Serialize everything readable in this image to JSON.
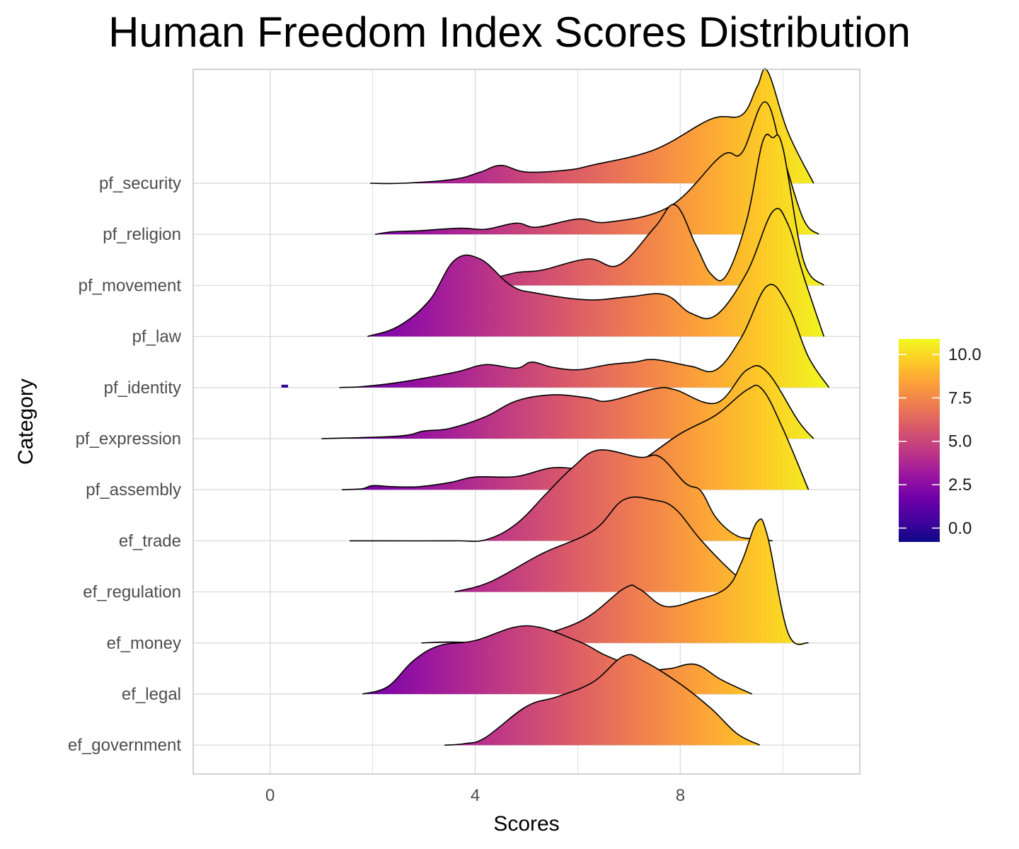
{
  "chart_data": {
    "type": "ridgeline",
    "title": "Human Freedom Index Scores Distribution",
    "xlabel": "Scores",
    "ylabel": "Category",
    "xlim": [
      -1.5,
      11.5
    ],
    "xticks": [
      0,
      4,
      8
    ],
    "grid": true,
    "categories": [
      "pf_security",
      "pf_religion",
      "pf_movement",
      "pf_law",
      "pf_identity",
      "pf_expression",
      "pf_assembly",
      "ef_trade",
      "ef_regulation",
      "ef_money",
      "ef_legal",
      "ef_government"
    ],
    "series": [
      {
        "category": "pf_security",
        "x": [
          1.95,
          2.6,
          3.6,
          4.1,
          4.5,
          5.0,
          5.8,
          6.3,
          7.5,
          8.6,
          9.2,
          9.5,
          9.7,
          10.1,
          10.6
        ],
        "density": [
          0.0,
          0.0,
          0.08,
          0.22,
          0.35,
          0.22,
          0.26,
          0.36,
          0.66,
          1.26,
          1.34,
          1.9,
          2.2,
          1.0,
          0.0
        ]
      },
      {
        "category": "pf_religion",
        "x": [
          2.05,
          2.4,
          2.9,
          3.7,
          4.2,
          4.8,
          5.2,
          6.0,
          6.6,
          7.8,
          8.8,
          9.2,
          9.65,
          10.0,
          10.4,
          10.7
        ],
        "density": [
          0.0,
          0.05,
          0.07,
          0.12,
          0.1,
          0.22,
          0.14,
          0.3,
          0.24,
          0.55,
          1.54,
          1.6,
          2.6,
          1.55,
          0.3,
          0.0
        ]
      },
      {
        "category": "pf_movement",
        "x": [
          3.4,
          3.7,
          4.2,
          4.8,
          5.3,
          6.2,
          6.8,
          7.5,
          7.9,
          8.3,
          8.6,
          8.9,
          9.3,
          9.6,
          9.8,
          10.0,
          10.4,
          10.8
        ],
        "density": [
          0.0,
          0.0,
          0.1,
          0.25,
          0.3,
          0.52,
          0.4,
          1.14,
          1.58,
          0.8,
          0.22,
          0.2,
          1.3,
          2.8,
          2.9,
          2.7,
          0.5,
          0.0
        ]
      },
      {
        "category": "pf_law",
        "x": [
          1.9,
          2.5,
          3.1,
          3.6,
          4.1,
          4.7,
          5.2,
          6.2,
          7.0,
          7.7,
          8.2,
          8.7,
          9.3,
          9.8,
          10.1,
          10.4,
          10.8
        ],
        "density": [
          0.0,
          0.2,
          0.7,
          1.5,
          1.52,
          1.0,
          0.85,
          0.72,
          0.78,
          0.82,
          0.46,
          0.42,
          1.26,
          2.45,
          2.2,
          1.2,
          0.0
        ]
      },
      {
        "category": "pf_identity",
        "x": [
          1.35,
          1.8,
          2.5,
          3.6,
          4.2,
          4.8,
          5.1,
          5.5,
          6.0,
          6.6,
          7.1,
          7.5,
          8.2,
          8.7,
          9.2,
          9.7,
          10.1,
          10.5,
          10.9
        ],
        "density": [
          0.0,
          0.02,
          0.1,
          0.3,
          0.45,
          0.38,
          0.5,
          0.4,
          0.35,
          0.45,
          0.5,
          0.55,
          0.42,
          0.35,
          1.0,
          2.0,
          1.6,
          0.6,
          0.0
        ]
      },
      {
        "category": "pf_expression",
        "x": [
          1.0,
          2.5,
          3.0,
          3.5,
          4.2,
          4.8,
          5.5,
          6.2,
          6.6,
          7.5,
          7.9,
          8.7,
          9.3,
          9.7,
          10.3,
          10.6
        ],
        "density": [
          0.0,
          0.05,
          0.15,
          0.2,
          0.43,
          0.74,
          0.86,
          0.8,
          0.74,
          0.98,
          0.96,
          0.7,
          1.35,
          1.3,
          0.35,
          0.0
        ]
      },
      {
        "category": "pf_assembly",
        "x": [
          1.4,
          1.8,
          2.0,
          2.4,
          2.9,
          3.5,
          4.0,
          4.8,
          5.5,
          6.2,
          7.0,
          8.0,
          8.7,
          9.3,
          9.6,
          10.0,
          10.5
        ],
        "density": [
          0.0,
          0.02,
          0.08,
          0.06,
          0.06,
          0.14,
          0.25,
          0.26,
          0.43,
          0.4,
          0.45,
          1.1,
          1.47,
          1.96,
          1.97,
          1.2,
          0.0
        ]
      },
      {
        "category": "ef_trade",
        "x": [
          1.55,
          2.2,
          3.6,
          4.2,
          4.8,
          5.4,
          5.9,
          6.4,
          7.2,
          7.6,
          8.1,
          8.4,
          8.7,
          9.1,
          9.5,
          9.8
        ],
        "density": [
          0.0,
          0.0,
          0.0,
          0.02,
          0.33,
          0.94,
          1.44,
          1.78,
          1.64,
          1.65,
          1.13,
          0.98,
          0.45,
          0.1,
          0.04,
          0.0
        ]
      },
      {
        "category": "ef_regulation",
        "x": [
          3.6,
          4.3,
          5.3,
          6.3,
          6.9,
          7.5,
          7.9,
          8.4,
          9.0,
          9.5
        ],
        "density": [
          0.0,
          0.2,
          0.75,
          1.2,
          1.81,
          1.8,
          1.63,
          1.02,
          0.4,
          0.0
        ]
      },
      {
        "category": "ef_money",
        "x": [
          2.95,
          3.5,
          4.1,
          4.6,
          6.0,
          6.9,
          7.2,
          7.7,
          8.3,
          8.9,
          9.2,
          9.5,
          9.7,
          10.1,
          10.5
        ],
        "density": [
          0.0,
          0.02,
          0.0,
          0.0,
          0.4,
          1.07,
          1.06,
          0.72,
          0.84,
          1.08,
          1.6,
          2.38,
          2.1,
          0.2,
          0.0
        ]
      },
      {
        "category": "ef_legal",
        "x": [
          1.8,
          2.3,
          2.8,
          3.3,
          4.0,
          5.0,
          6.0,
          6.5,
          7.0,
          7.4,
          7.8,
          8.3,
          8.8,
          9.4
        ],
        "density": [
          0.0,
          0.15,
          0.66,
          0.95,
          1.05,
          1.34,
          1.04,
          0.78,
          0.58,
          0.48,
          0.5,
          0.58,
          0.28,
          0.0
        ]
      },
      {
        "category": "ef_government",
        "x": [
          3.4,
          3.8,
          4.2,
          5.0,
          5.6,
          6.3,
          6.9,
          7.3,
          8.0,
          8.6,
          9.1,
          9.55
        ],
        "density": [
          0.0,
          0.03,
          0.15,
          0.76,
          0.95,
          1.24,
          1.75,
          1.64,
          1.2,
          0.72,
          0.23,
          0.0
        ]
      }
    ],
    "legend": {
      "position": "right",
      "range": [
        -0.8,
        10.9
      ],
      "ticks": [
        "0.0",
        "2.5",
        "5.0",
        "7.5",
        "10.0"
      ],
      "tick_values": [
        0,
        2.5,
        5.0,
        7.5,
        10.0
      ]
    },
    "colors": {
      "palette": "plasma",
      "stops": [
        "#0d0887",
        "#46039f",
        "#7201a8",
        "#9c179e",
        "#bd3786",
        "#d8576b",
        "#ed7953",
        "#fb9f3a",
        "#fdca26",
        "#f0f921"
      ],
      "panel_border": "#b3b3b3",
      "gridline": "#dcdcdc",
      "outline": "#000000"
    }
  }
}
